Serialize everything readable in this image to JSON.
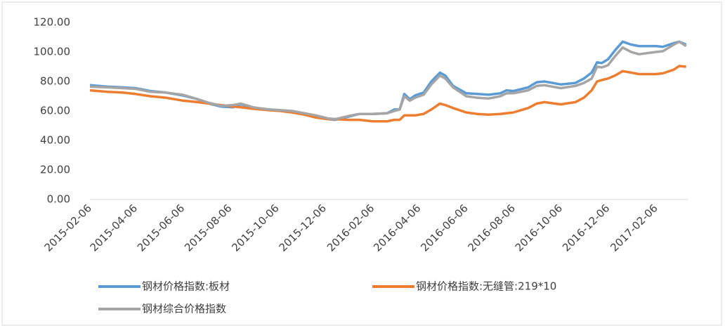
{
  "chart_data": {
    "type": "line",
    "x": [
      "2015-02-06",
      "2015-03-01",
      "2015-03-20",
      "2015-04-06",
      "2015-04-25",
      "2015-05-15",
      "2015-06-06",
      "2015-06-25",
      "2015-07-10",
      "2015-07-25",
      "2015-08-10",
      "2015-08-20",
      "2015-09-05",
      "2015-09-25",
      "2015-10-10",
      "2015-10-25",
      "2015-11-10",
      "2015-11-25",
      "2015-12-10",
      "2015-12-20",
      "2016-01-05",
      "2016-01-20",
      "2016-02-06",
      "2016-02-25",
      "2016-03-05",
      "2016-03-12",
      "2016-03-18",
      "2016-03-25",
      "2016-04-01",
      "2016-04-12",
      "2016-04-22",
      "2016-05-03",
      "2016-05-10",
      "2016-05-20",
      "2016-06-06",
      "2016-06-20",
      "2016-07-05",
      "2016-07-20",
      "2016-07-28",
      "2016-08-06",
      "2016-08-25",
      "2016-09-05",
      "2016-09-15",
      "2016-10-06",
      "2016-10-25",
      "2016-11-05",
      "2016-11-15",
      "2016-11-22",
      "2016-11-28",
      "2016-12-06",
      "2016-12-15",
      "2016-12-25",
      "2017-01-05",
      "2017-01-15",
      "2017-02-06",
      "2017-02-15",
      "2017-03-01",
      "2017-03-08",
      "2017-03-17"
    ],
    "series": [
      {
        "name": "钢材价格指数:板材",
        "color": "#5b9bd5",
        "values": [
          77.5,
          76.5,
          76,
          75.5,
          73.5,
          72.5,
          70.5,
          68,
          65,
          63,
          62.5,
          64.5,
          62,
          61,
          60.5,
          59.5,
          58,
          56,
          54.5,
          54,
          56,
          58,
          58,
          58.5,
          61,
          61,
          71.5,
          68,
          70.5,
          72.5,
          80,
          86,
          84,
          77,
          72,
          71.5,
          71,
          72,
          74,
          73.5,
          76,
          79.5,
          80,
          78,
          79,
          82,
          86,
          93,
          92.5,
          95,
          101,
          107,
          105,
          104,
          104,
          103.5,
          106,
          107,
          105
        ]
      },
      {
        "name": "钢材价格指数:无缝管:219*10",
        "color": "#ed7d31",
        "values": [
          74,
          73,
          72.5,
          71.5,
          70,
          69,
          67,
          66,
          65,
          64,
          63,
          62.5,
          61.5,
          60.5,
          60,
          59,
          57.5,
          55.5,
          54.5,
          54.5,
          54,
          54,
          53,
          53,
          54,
          54,
          57,
          57,
          57,
          58,
          61,
          65,
          64,
          62,
          59,
          58,
          57.5,
          58,
          58.5,
          59,
          62,
          65,
          66,
          64.5,
          66,
          69,
          74,
          80,
          81,
          82,
          84,
          87,
          86,
          85,
          85,
          85.5,
          88,
          90.5,
          90
        ]
      },
      {
        "name": "钢材综合价格指数",
        "color": "#a5a5a5",
        "values": [
          76.5,
          76,
          75.5,
          75,
          73,
          72.5,
          71,
          68,
          65.5,
          63.5,
          64,
          65,
          62.5,
          61,
          60.5,
          60,
          58.5,
          57,
          55,
          54.5,
          56.5,
          58,
          58,
          58.5,
          60,
          61,
          70,
          67,
          69,
          71,
          78,
          84,
          82,
          76,
          70,
          69,
          68.5,
          70,
          72,
          72,
          74,
          77,
          77.5,
          75.5,
          77,
          79,
          82,
          90,
          89.5,
          91,
          97,
          103,
          100,
          98.5,
          100,
          100.5,
          105,
          107,
          104
        ]
      }
    ],
    "xlim": [
      "2015-02-06",
      "2017-03-20"
    ],
    "xticks": [
      "2015-02-06",
      "2015-04-06",
      "2015-06-06",
      "2015-08-06",
      "2015-10-06",
      "2015-12-06",
      "2016-02-06",
      "2016-04-06",
      "2016-06-06",
      "2016-08-06",
      "2016-10-06",
      "2016-12-06",
      "2017-02-06"
    ],
    "ylim": [
      0,
      120
    ],
    "yticks": [
      {
        "value": 0,
        "label": "0.00"
      },
      {
        "value": 20,
        "label": "20.00"
      },
      {
        "value": 40,
        "label": "40.00"
      },
      {
        "value": 60,
        "label": "60.00"
      },
      {
        "value": 80,
        "label": "80.00"
      },
      {
        "value": 100,
        "label": "100.00"
      },
      {
        "value": 120,
        "label": "120.00"
      }
    ]
  }
}
